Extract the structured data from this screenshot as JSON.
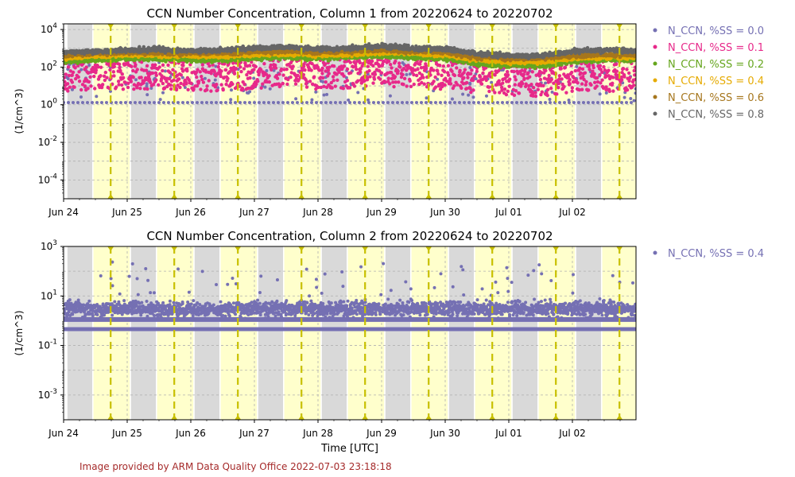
{
  "footer": "Image provided by ARM Data Quality Office 2022-07-03 23:18:18",
  "chart_data": [
    {
      "type": "scatter",
      "title": "CCN Number Concentration, Column 1 from 20220624 to 20220702",
      "ylabel": "(1/cm^3)",
      "xlabel": "",
      "yscale": "log",
      "ylim": [
        1e-05,
        20000
      ],
      "xlim": [
        "2022-06-24 00:00",
        "2022-07-03 00:00"
      ],
      "x_tick_labels": [
        "Jun 24",
        "Jun 25",
        "Jun 26",
        "Jun 27",
        "Jun 28",
        "Jun 29",
        "Jun 30",
        "Jul 01",
        "Jul 02"
      ],
      "y_tick_labels": [
        "10^-4",
        "10^-2",
        "10^0",
        "10^2",
        "10^4"
      ],
      "grid": true,
      "legend_position": "outside-right",
      "x": [
        "Jun 24 00:00",
        "Jun 24 12:00",
        "Jun 25 00:00",
        "Jun 25 12:00",
        "Jun 26 00:00",
        "Jun 26 12:00",
        "Jun 27 00:00",
        "Jun 27 12:00",
        "Jun 28 00:00",
        "Jun 28 12:00",
        "Jun 29 00:00",
        "Jun 29 12:00",
        "Jun 30 00:00",
        "Jun 30 12:00",
        "Jul 01 00:00",
        "Jul 01 12:00",
        "Jul 02 00:00",
        "Jul 02 12:00",
        "Jul 03 00:00"
      ],
      "series": [
        {
          "name": "N_CCN, %SS = 0.0",
          "color": "#7570b3",
          "values": [
            1.3,
            1.3,
            1.3,
            1.3,
            1.3,
            1.3,
            1.3,
            1.3,
            1.3,
            1.3,
            1.3,
            1.3,
            1.3,
            1.3,
            1.3,
            1.3,
            1.3,
            1.3,
            1.3
          ]
        },
        {
          "name": "N_CCN, %SS = 0.1",
          "color": "#e7298a",
          "values": [
            60,
            70,
            80,
            80,
            70,
            60,
            80,
            100,
            80,
            90,
            100,
            90,
            80,
            50,
            40,
            30,
            60,
            60,
            70
          ]
        },
        {
          "name": "N_CCN, %SS = 0.2",
          "color": "#66a61e",
          "values": [
            200,
            250,
            300,
            300,
            250,
            250,
            300,
            350,
            300,
            350,
            400,
            350,
            300,
            150,
            120,
            120,
            200,
            250,
            250
          ]
        },
        {
          "name": "N_CCN, %SS = 0.4",
          "color": "#e6ab02",
          "values": [
            300,
            400,
            450,
            450,
            400,
            400,
            500,
            500,
            450,
            500,
            600,
            550,
            450,
            250,
            200,
            200,
            300,
            350,
            350
          ]
        },
        {
          "name": "N_CCN, %SS = 0.6",
          "color": "#a6761d",
          "values": [
            450,
            550,
            600,
            600,
            550,
            550,
            700,
            700,
            650,
            700,
            800,
            700,
            600,
            350,
            300,
            300,
            400,
            450,
            450
          ]
        },
        {
          "name": "N_CCN, %SS = 0.8",
          "color": "#666666",
          "values": [
            600,
            700,
            800,
            900,
            700,
            800,
            1000,
            1200,
            900,
            1000,
            1300,
            1000,
            900,
            500,
            400,
            400,
            700,
            800,
            700
          ]
        }
      ]
    },
    {
      "type": "scatter",
      "title": "CCN Number Concentration, Column 2 from 20220624 to 20220702",
      "ylabel": "(1/cm^3)",
      "xlabel": "Time [UTC]",
      "yscale": "log",
      "ylim": [
        0.0001,
        1000
      ],
      "xlim": [
        "2022-06-24 00:00",
        "2022-07-03 00:00"
      ],
      "x_tick_labels": [
        "Jun 24",
        "Jun 25",
        "Jun 26",
        "Jun 27",
        "Jun 28",
        "Jun 29",
        "Jun 30",
        "Jul 01",
        "Jul 02"
      ],
      "y_tick_labels": [
        "10^-3",
        "10^-1",
        "10^1",
        "10^3"
      ],
      "grid": true,
      "legend_position": "outside-right",
      "x": [
        "Jun 24 00:00",
        "Jun 24 12:00",
        "Jun 25 00:00",
        "Jun 25 12:00",
        "Jun 26 00:00",
        "Jun 26 12:00",
        "Jun 27 00:00",
        "Jun 27 12:00",
        "Jun 28 00:00",
        "Jun 28 12:00",
        "Jun 29 00:00",
        "Jun 29 12:00",
        "Jun 30 00:00",
        "Jun 30 12:00",
        "Jul 01 00:00",
        "Jul 01 12:00",
        "Jul 02 00:00",
        "Jul 02 12:00",
        "Jul 03 00:00"
      ],
      "series": [
        {
          "name": "N_CCN, %SS = 0.4",
          "color": "#7570b3",
          "values": [
            3,
            3,
            3,
            3,
            3,
            3,
            3,
            3,
            3,
            3,
            3,
            3,
            3,
            3,
            3,
            3,
            3,
            3,
            3
          ]
        }
      ]
    }
  ]
}
